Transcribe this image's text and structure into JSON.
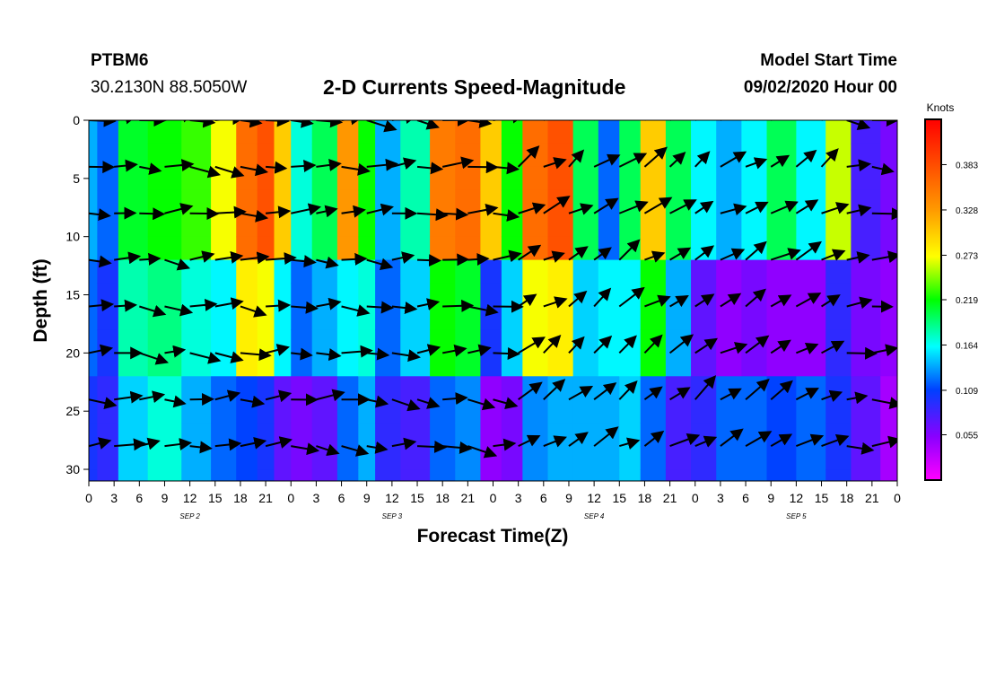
{
  "header": {
    "station": "PTBM6",
    "coords": "30.2130N 88.5050W",
    "title": "2-D Currents Speed-Magnitude",
    "model_start_label": "Model Start Time",
    "model_start_value": "09/02/2020 Hour 00"
  },
  "chart_data": {
    "type": "heatmap",
    "title": "2-D Currents Speed-Magnitude",
    "xlabel": "Forecast Time(Z)",
    "ylabel": "Depth (ft)",
    "x_range_hours": [
      0,
      96
    ],
    "y_range_ft": [
      0,
      31
    ],
    "x_tick_labels": [
      "0",
      "3",
      "6",
      "9",
      "12",
      "15",
      "18",
      "21",
      "0",
      "3",
      "6",
      "9",
      "12",
      "15",
      "18",
      "21",
      "0",
      "3",
      "6",
      "9",
      "12",
      "15",
      "18",
      "21",
      "0",
      "3",
      "6",
      "9",
      "12",
      "15",
      "18",
      "21",
      "0"
    ],
    "y_ticks": [
      0,
      5,
      10,
      15,
      20,
      25,
      30
    ],
    "day_labels": [
      {
        "text": "SEP 2",
        "hour": 12
      },
      {
        "text": "SEP 3",
        "hour": 36
      },
      {
        "text": "SEP 4",
        "hour": 60
      },
      {
        "text": "SEP 5",
        "hour": 84
      }
    ],
    "colorbar": {
      "unit": "Knots",
      "range": [
        0.0,
        0.438
      ],
      "tick_labels": [
        "0.383",
        "0.328",
        "0.273",
        "0.219",
        "0.164",
        "0.109",
        "0.055"
      ],
      "tick_values": [
        0.383,
        0.328,
        0.273,
        0.219,
        0.164,
        0.109,
        0.055
      ]
    },
    "grid": false,
    "vector_depths_ft": [
      0,
      4,
      8,
      12,
      16,
      20,
      24,
      28
    ],
    "vector_interval_hours": 3,
    "speed_profile_note": "speed estimated per time column, applied to depth bands",
    "speed_columns": [
      {
        "hour": 0,
        "surface": 0.14,
        "mid": 0.12,
        "deep": 0.1
      },
      {
        "hour": 2,
        "surface": 0.12,
        "mid": 0.1,
        "deep": 0.09
      },
      {
        "hour": 5,
        "surface": 0.21,
        "mid": 0.18,
        "deep": 0.15
      },
      {
        "hour": 9,
        "surface": 0.22,
        "mid": 0.19,
        "deep": 0.17
      },
      {
        "hour": 13,
        "surface": 0.23,
        "mid": 0.17,
        "deep": 0.14
      },
      {
        "hour": 16,
        "surface": 0.27,
        "mid": 0.16,
        "deep": 0.12
      },
      {
        "hour": 19,
        "surface": 0.36,
        "mid": 0.28,
        "deep": 0.11
      },
      {
        "hour": 21,
        "surface": 0.38,
        "mid": 0.27,
        "deep": 0.1
      },
      {
        "hour": 23,
        "surface": 0.3,
        "mid": 0.16,
        "deep": 0.07
      },
      {
        "hour": 25,
        "surface": 0.17,
        "mid": 0.12,
        "deep": 0.06
      },
      {
        "hour": 28,
        "surface": 0.2,
        "mid": 0.14,
        "deep": 0.07
      },
      {
        "hour": 31,
        "surface": 0.33,
        "mid": 0.16,
        "deep": 0.12
      },
      {
        "hour": 33,
        "surface": 0.22,
        "mid": 0.17,
        "deep": 0.14
      },
      {
        "hour": 35,
        "surface": 0.14,
        "mid": 0.12,
        "deep": 0.09
      },
      {
        "hour": 39,
        "surface": 0.18,
        "mid": 0.15,
        "deep": 0.08
      },
      {
        "hour": 42,
        "surface": 0.35,
        "mid": 0.22,
        "deep": 0.12
      },
      {
        "hour": 45,
        "surface": 0.36,
        "mid": 0.21,
        "deep": 0.13
      },
      {
        "hour": 48,
        "surface": 0.3,
        "mid": 0.1,
        "deep": 0.05
      },
      {
        "hour": 50,
        "surface": 0.22,
        "mid": 0.15,
        "deep": 0.06
      },
      {
        "hour": 53,
        "surface": 0.36,
        "mid": 0.27,
        "deep": 0.13
      },
      {
        "hour": 56,
        "surface": 0.38,
        "mid": 0.28,
        "deep": 0.14
      },
      {
        "hour": 59,
        "surface": 0.2,
        "mid": 0.15,
        "deep": 0.14
      },
      {
        "hour": 62,
        "surface": 0.12,
        "mid": 0.16,
        "deep": 0.14
      },
      {
        "hour": 64,
        "surface": 0.2,
        "mid": 0.16,
        "deep": 0.15
      },
      {
        "hour": 67,
        "surface": 0.3,
        "mid": 0.22,
        "deep": 0.12
      },
      {
        "hour": 70,
        "surface": 0.2,
        "mid": 0.14,
        "deep": 0.08
      },
      {
        "hour": 73,
        "surface": 0.16,
        "mid": 0.07,
        "deep": 0.09
      },
      {
        "hour": 76,
        "surface": 0.14,
        "mid": 0.05,
        "deep": 0.12
      },
      {
        "hour": 79,
        "surface": 0.16,
        "mid": 0.06,
        "deep": 0.12
      },
      {
        "hour": 82,
        "surface": 0.2,
        "mid": 0.05,
        "deep": 0.11
      },
      {
        "hour": 86,
        "surface": 0.16,
        "mid": 0.05,
        "deep": 0.12
      },
      {
        "hour": 89,
        "surface": 0.26,
        "mid": 0.09,
        "deep": 0.1
      },
      {
        "hour": 92,
        "surface": 0.08,
        "mid": 0.06,
        "deep": 0.07
      },
      {
        "hour": 96,
        "surface": 0.06,
        "mid": 0.05,
        "deep": 0.04
      }
    ]
  }
}
